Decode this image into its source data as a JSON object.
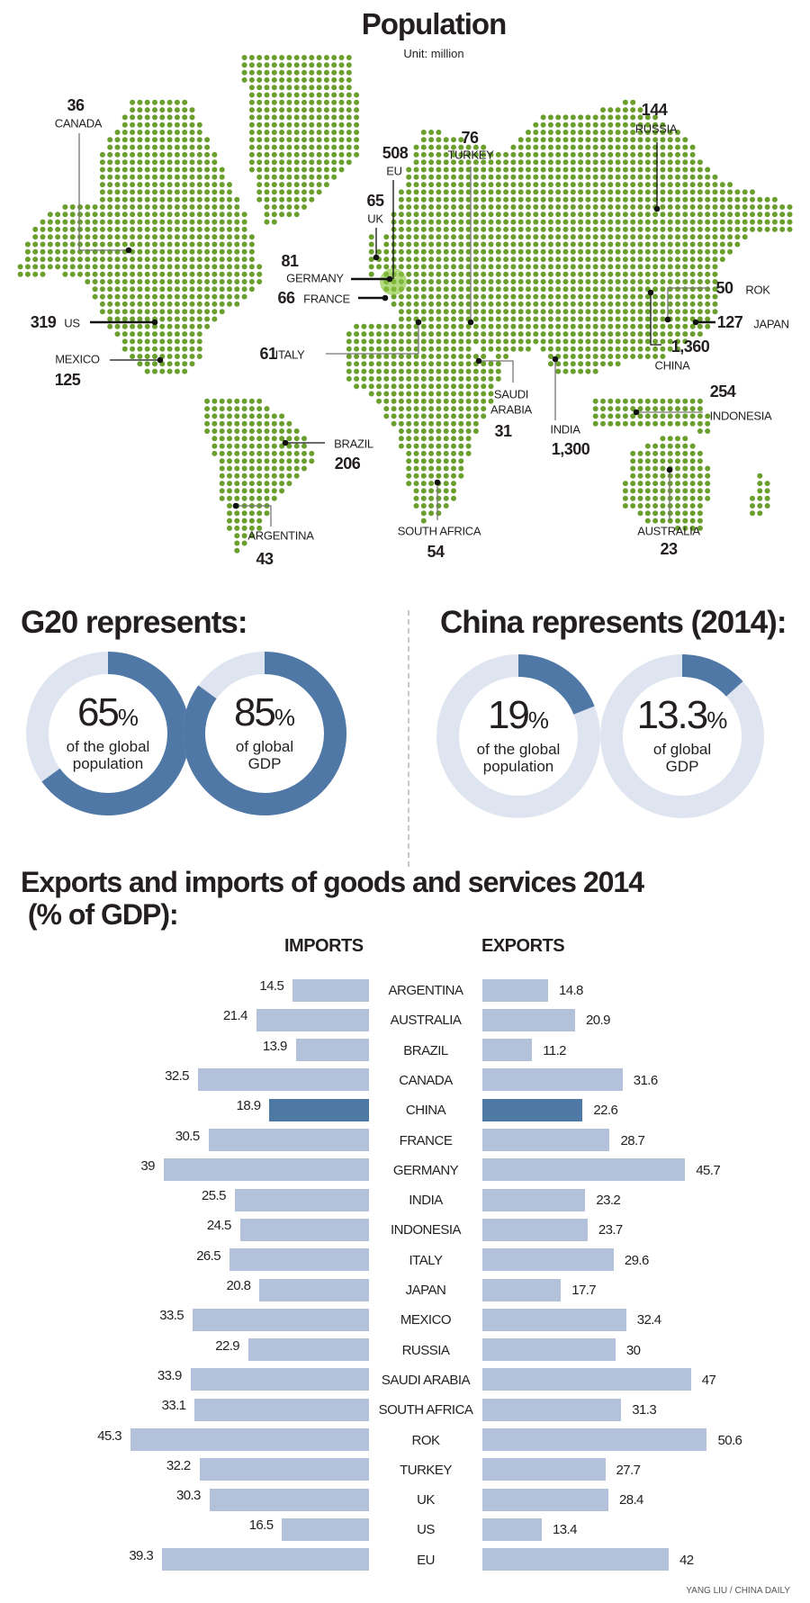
{
  "colors": {
    "land": "#6a9f2e",
    "eu_highlight": "#8cc63f",
    "donut_fill": "#4f78a6",
    "donut_track": "#dfe5f0",
    "bar": "#b3c2da",
    "bar_highlight": "#4e79a5"
  },
  "chart_data": [
    {
      "type": "table",
      "title": "Population",
      "subtitle": "Unit: million",
      "rows": [
        {
          "id": "canada",
          "name": "CANADA",
          "value": "36"
        },
        {
          "id": "us",
          "name": "US",
          "value": "319"
        },
        {
          "id": "mexico",
          "name": "MEXICO",
          "value": "125"
        },
        {
          "id": "germany",
          "name": "GERMANY",
          "value": "81"
        },
        {
          "id": "france",
          "name": "FRANCE",
          "value": "66"
        },
        {
          "id": "uk",
          "name": "UK",
          "value": "65"
        },
        {
          "id": "eu",
          "name": "EU",
          "value": "508"
        },
        {
          "id": "turkey",
          "name": "TURKEY",
          "value": "76"
        },
        {
          "id": "russia",
          "name": "RUSSIA",
          "value": "144"
        },
        {
          "id": "italy",
          "name": "ITALY",
          "value": "61"
        },
        {
          "id": "rok",
          "name": "ROK",
          "value": "50"
        },
        {
          "id": "japan",
          "name": "JAPAN",
          "value": "127"
        },
        {
          "id": "china",
          "name": "CHINA",
          "value": "1,360"
        },
        {
          "id": "saudi",
          "name": "SAUDI ARABIA",
          "value": "31"
        },
        {
          "id": "india",
          "name": "INDIA",
          "value": "1,300"
        },
        {
          "id": "indonesia",
          "name": "INDONESIA",
          "value": "254"
        },
        {
          "id": "brazil",
          "name": "BRAZIL",
          "value": "206"
        },
        {
          "id": "argentina",
          "name": "ARGENTINA",
          "value": "43"
        },
        {
          "id": "southafrica",
          "name": "SOUTH AFRICA",
          "value": "54"
        },
        {
          "id": "australia",
          "name": "AUSTRALIA",
          "value": "23"
        }
      ]
    },
    {
      "type": "pie",
      "title": "G20 represents:",
      "slices": [
        {
          "value": 65,
          "label_num": "65",
          "label_pct": "%",
          "caption1": "of the global",
          "caption2": "population"
        },
        {
          "value": 85,
          "label_num": "85",
          "label_pct": "%",
          "caption1": "of global",
          "caption2": "GDP"
        }
      ]
    },
    {
      "type": "pie",
      "title": "China represents (2014):",
      "slices": [
        {
          "value": 19,
          "label_num": "19",
          "label_pct": "%",
          "caption1": "of the global",
          "caption2": "population"
        },
        {
          "value": 13.3,
          "label_num": "13.3",
          "label_pct": "%",
          "caption1": "of global",
          "caption2": "GDP"
        }
      ]
    },
    {
      "type": "bar",
      "title": "Exports and imports of goods and services 2014",
      "title2": " (% of GDP):",
      "xlabel": "",
      "ylabel": "",
      "series_labels": {
        "imports": "IMPORTS",
        "exports": "EXPORTS"
      },
      "categories": [
        "ARGENTINA",
        "AUSTRALIA",
        "BRAZIL",
        "CANADA",
        "CHINA",
        "FRANCE",
        "GERMANY",
        "INDIA",
        "INDONESIA",
        "ITALY",
        "JAPAN",
        "MEXICO",
        "RUSSIA",
        "SAUDI ARABIA",
        "SOUTH AFRICA",
        "ROK",
        "TURKEY",
        "UK",
        "US",
        "EU"
      ],
      "series": [
        {
          "name": "IMPORTS",
          "values": [
            14.5,
            21.4,
            13.9,
            32.5,
            18.9,
            30.5,
            39,
            25.5,
            24.5,
            26.5,
            20.8,
            33.5,
            22.9,
            33.9,
            33.1,
            45.3,
            32.2,
            30.3,
            16.5,
            39.3
          ]
        },
        {
          "name": "EXPORTS",
          "values": [
            14.8,
            20.9,
            11.2,
            31.6,
            22.6,
            28.7,
            45.7,
            23.2,
            23.7,
            29.6,
            17.7,
            32.4,
            30,
            47,
            31.3,
            50.6,
            27.7,
            28.4,
            13.4,
            42
          ]
        }
      ],
      "highlight": "CHINA"
    }
  ],
  "credit": "YANG LIU / CHINA DAILY"
}
